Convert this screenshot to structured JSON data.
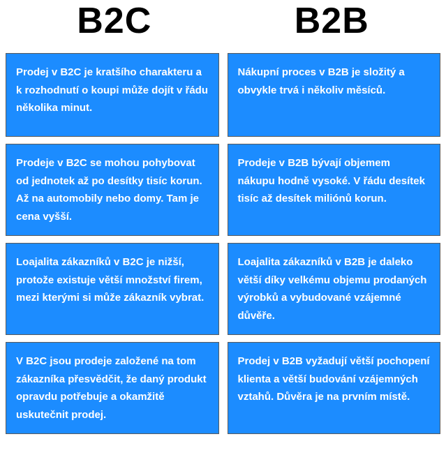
{
  "comparison": {
    "type": "infographic",
    "background_color": "#ffffff",
    "cell_color": "#1c8cff",
    "cell_border_color": "#5a5a5a",
    "text_color": "#ffffff",
    "header_color": "#000000",
    "header_fontsize": 52,
    "body_fontsize": 15,
    "body_fontweight": 700,
    "gap": 12,
    "columns": [
      {
        "title": "B2C"
      },
      {
        "title": "B2B"
      }
    ],
    "rows": [
      {
        "left": "Prodej v B2C je kratšího charakteru a k rozhodnutí o koupi může dojít v řádu několika minut.",
        "right": "Nákupní proces v B2B je složitý a obvykle trvá i několiv měsíců."
      },
      {
        "left": "Prodeje v B2C se mohou pohybovat od jednotek až po desítky tisíc korun. Až na automobily nebo domy. Tam je cena vyšší.",
        "right": "Prodeje v B2B bývají objemem nákupu hodně vysoké. V řádu desítek tisíc až desítek miliónů korun."
      },
      {
        "left": "Loajalita zákazníků v B2C je nižší, protože existuje větší množství firem, mezi kterými si může zákazník vybrat.",
        "right": "Loajalita zákazníků v B2B je daleko větší díky velkému objemu prodaných výrobků a vybudované vzájemné důvěře."
      },
      {
        "left": "V B2C jsou prodeje založené na tom zákazníka přesvědčit, že daný produkt opravdu potřebuje a okamžitě uskutečnit prodej.",
        "right": "Prodej v B2B vyžadují větší pochopení klienta a větší budování vzájemných vztahů. Důvěra je na prvním místě."
      }
    ]
  }
}
